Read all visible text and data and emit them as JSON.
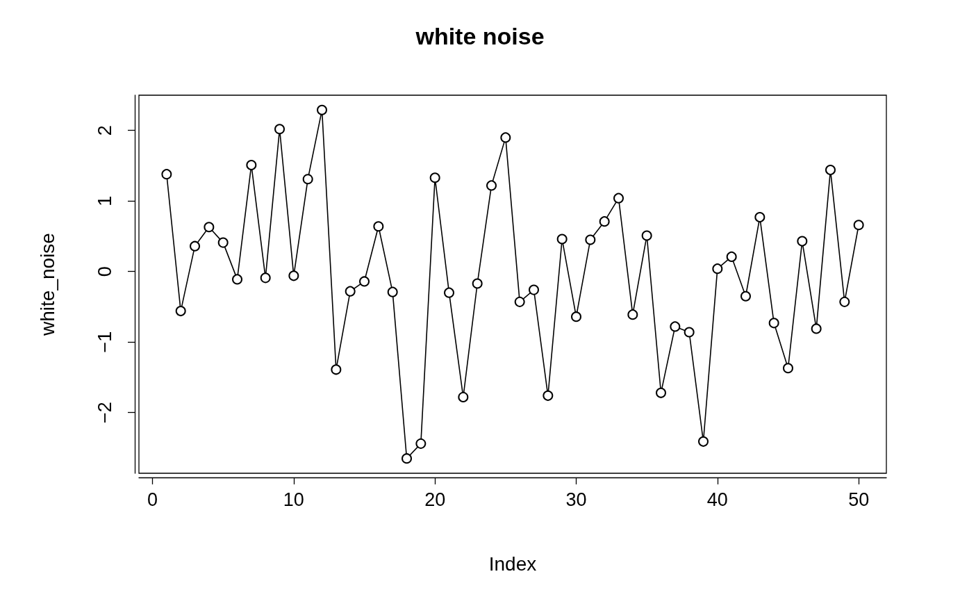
{
  "chart_data": {
    "type": "line",
    "title": "white noise",
    "xlabel": "Index",
    "ylabel": "white_noise",
    "x": [
      1,
      2,
      3,
      4,
      5,
      6,
      7,
      8,
      9,
      10,
      11,
      12,
      13,
      14,
      15,
      16,
      17,
      18,
      19,
      20,
      21,
      22,
      23,
      24,
      25,
      26,
      27,
      28,
      29,
      30,
      31,
      32,
      33,
      34,
      35,
      36,
      37,
      38,
      39,
      40,
      41,
      42,
      43,
      44,
      45,
      46,
      47,
      48,
      49,
      50
    ],
    "series": [
      {
        "color": "#000000",
        "values": [
          1.38,
          -0.56,
          0.36,
          0.63,
          0.41,
          -0.11,
          1.51,
          -0.09,
          2.02,
          -0.06,
          1.31,
          2.29,
          -1.39,
          -0.28,
          -0.14,
          0.64,
          -0.29,
          -2.65,
          -2.44,
          1.33,
          -0.3,
          -1.78,
          -0.17,
          1.22,
          1.9,
          -0.43,
          -0.26,
          -1.76,
          0.46,
          -0.64,
          0.45,
          0.71,
          1.04,
          -0.61,
          0.51,
          -1.72,
          -0.78,
          -0.86,
          -2.41,
          0.04,
          0.21,
          -0.35,
          0.77,
          -0.73,
          -1.37,
          0.43,
          -0.81,
          1.44,
          -0.43,
          0.66
        ]
      }
    ],
    "xlim": [
      -0.96,
      51.96
    ],
    "xticks": [
      0,
      10,
      20,
      30,
      40,
      50
    ],
    "ylim": [
      -2.86,
      2.5
    ],
    "yticks": [
      {
        "value": -2,
        "label": "−2"
      },
      {
        "value": -1,
        "label": "−1"
      },
      0,
      1,
      2
    ],
    "marker": "circle",
    "line_style": "solid",
    "grid": false
  }
}
